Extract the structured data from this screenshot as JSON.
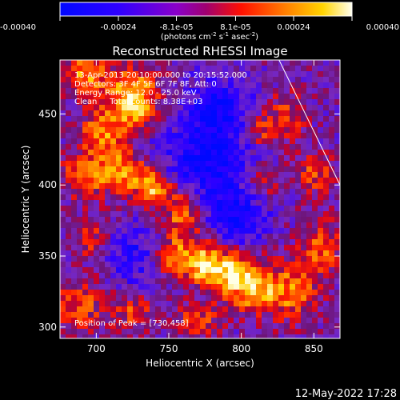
{
  "chart_data": {
    "type": "heatmap",
    "title": "Reconstructed RHESSI Image",
    "xlabel": "Heliocentric X (arcsec)",
    "ylabel": "Heliocentric Y (arcsec)",
    "xlim": [
      675,
      868
    ],
    "ylim": [
      292,
      488
    ],
    "x_ticks": [
      700,
      750,
      800,
      850
    ],
    "y_ticks": [
      300,
      350,
      400,
      450
    ],
    "colorbar": {
      "range": [
        -0.0004,
        0.0004
      ],
      "tick_values": [
        -0.0004,
        -0.00024,
        -8.1e-05,
        8.1e-05,
        0.00024,
        0.0004
      ],
      "tick_labels": [
        "-0.00040",
        "-0.00024",
        "-8.1e-05",
        "8.1e-05",
        "0.00024",
        "0.00040"
      ],
      "units_text": "(photons cm",
      "units_exp1": "-2",
      "units_mid": " s",
      "units_exp2": "-1",
      "units_mid2": " asec",
      "units_exp3": "-2",
      "units_end": ")"
    },
    "annotations": [
      "13-Apr-2013 20:10:00.000 to 20:15:52.000",
      "Detectors: 3F 4F 5F 6F 7F 8F, Att: 0",
      "Energy Range: 12.0 - 25.0 keV",
      "Clean     Total counts: 8.38E+03"
    ],
    "peak_label": "Position of Peak = [730,458]",
    "limb_line": [
      [
        826,
        488
      ],
      [
        868,
        400
      ]
    ],
    "hot_regions": [
      {
        "x": 693,
        "y": 478,
        "sx": 10,
        "sy": 10,
        "amp": 0.8
      },
      {
        "x": 725,
        "y": 468,
        "sx": 12,
        "sy": 12,
        "amp": 0.9
      },
      {
        "x": 728,
        "y": 452,
        "sx": 10,
        "sy": 8,
        "amp": 0.7
      },
      {
        "x": 705,
        "y": 435,
        "sx": 12,
        "sy": 14,
        "amp": 0.75
      },
      {
        "x": 690,
        "y": 405,
        "sx": 10,
        "sy": 10,
        "amp": 0.65
      },
      {
        "x": 718,
        "y": 408,
        "sx": 12,
        "sy": 10,
        "amp": 0.8
      },
      {
        "x": 740,
        "y": 398,
        "sx": 9,
        "sy": 9,
        "amp": 0.95
      },
      {
        "x": 760,
        "y": 380,
        "sx": 10,
        "sy": 14,
        "amp": 0.95
      },
      {
        "x": 752,
        "y": 350,
        "sx": 8,
        "sy": 8,
        "amp": 0.7
      },
      {
        "x": 772,
        "y": 345,
        "sx": 10,
        "sy": 10,
        "amp": 0.85
      },
      {
        "x": 792,
        "y": 340,
        "sx": 14,
        "sy": 10,
        "amp": 0.95
      },
      {
        "x": 808,
        "y": 325,
        "sx": 12,
        "sy": 10,
        "amp": 0.85
      },
      {
        "x": 835,
        "y": 325,
        "sx": 12,
        "sy": 14,
        "amp": 0.7
      },
      {
        "x": 855,
        "y": 355,
        "sx": 10,
        "sy": 14,
        "amp": 0.6
      },
      {
        "x": 850,
        "y": 408,
        "sx": 10,
        "sy": 10,
        "amp": 0.55
      },
      {
        "x": 830,
        "y": 448,
        "sx": 10,
        "sy": 12,
        "amp": 0.5
      },
      {
        "x": 812,
        "y": 438,
        "sx": 8,
        "sy": 8,
        "amp": 0.5
      },
      {
        "x": 688,
        "y": 315,
        "sx": 12,
        "sy": 12,
        "amp": 0.6
      },
      {
        "x": 725,
        "y": 310,
        "sx": 10,
        "sy": 8,
        "amp": 0.55
      },
      {
        "x": 770,
        "y": 305,
        "sx": 12,
        "sy": 8,
        "amp": 0.5
      },
      {
        "x": 815,
        "y": 402,
        "sx": 8,
        "sy": 8,
        "amp": 0.45
      },
      {
        "x": 697,
        "y": 362,
        "sx": 8,
        "sy": 10,
        "amp": 0.45
      }
    ],
    "cold_regions": [
      {
        "x": 775,
        "y": 410,
        "sx": 22,
        "sy": 25,
        "amp": 0.75
      },
      {
        "x": 785,
        "y": 455,
        "sx": 15,
        "sy": 15,
        "amp": 0.6
      },
      {
        "x": 725,
        "y": 350,
        "sx": 12,
        "sy": 14,
        "amp": 0.5
      },
      {
        "x": 800,
        "y": 375,
        "sx": 12,
        "sy": 12,
        "amp": 0.55
      }
    ]
  },
  "footer": {
    "timestamp": "12-May-2022 17:28"
  }
}
